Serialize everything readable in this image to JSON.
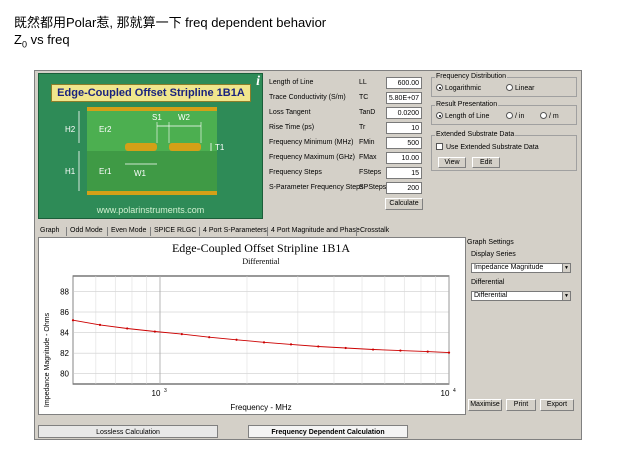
{
  "captions": {
    "line1": "既然都用Polar惹, 那就算一下 freq dependent behavior",
    "line2_pre": "Z",
    "line2_sub": "0",
    "line2_post": " vs freq"
  },
  "diagram": {
    "title": "Edge-Coupled Offset Stripline 1B1A",
    "info_icon": "i",
    "url": "www.polarinstruments.com",
    "labels": {
      "s1": "S1",
      "w2": "W2",
      "h2": "H2",
      "h1": "H1",
      "er2": "Er2",
      "er1": "Er1",
      "t1": "T1",
      "w1": "W1"
    }
  },
  "params": [
    {
      "label": "Length of Line",
      "symbol": "LL",
      "value": "600.00"
    },
    {
      "label": "Trace Conductivity (S/m)",
      "symbol": "TC",
      "value": "5.80E+07"
    },
    {
      "label": "Loss Tangent",
      "symbol": "TanD",
      "value": "0.0200"
    },
    {
      "label": "Rise Time (ps)",
      "symbol": "Tr",
      "value": "10"
    },
    {
      "label": "Frequency Minimum (MHz)",
      "symbol": "FMin",
      "value": "500"
    },
    {
      "label": "Frequency Maximum (GHz)",
      "symbol": "FMax",
      "value": "10.00"
    },
    {
      "label": "Frequency Steps",
      "symbol": "FSteps",
      "value": "15"
    },
    {
      "label": "S-Parameter Frequency Steps",
      "symbol": "SPSteps",
      "value": "200"
    }
  ],
  "calculate_label": "Calculate",
  "freq_dist": {
    "title": "Frequency Distribution",
    "opt1": "Logarithmic",
    "opt2": "Linear"
  },
  "result_pres": {
    "title": "Result Presentation",
    "opt1": "Length of Line",
    "opt2": "/ in",
    "opt3": "/ m"
  },
  "ext_substrate": {
    "title": "Extended Substrate Data",
    "check_label": "Use Extended Substrate Data",
    "view": "View",
    "edit": "Edit"
  },
  "tabs": [
    "Graph",
    "Odd Mode",
    "Even Mode",
    "SPICE RLGC",
    "4 Port S-Parameters",
    "4 Port Magnitude and Phase",
    "Crosstalk"
  ],
  "graph_settings": {
    "title": "Graph Settings",
    "display_series_label": "Display Series",
    "display_series_value": "Impedance Magnitude",
    "differential_label": "Differential",
    "differential_value": "Differential",
    "maximise": "Maximise",
    "print": "Print",
    "export": "Export"
  },
  "bottom_tabs": [
    "Lossless Calculation",
    "Frequency Dependent Calculation"
  ],
  "chart_data": {
    "type": "line",
    "title": "Edge-Coupled Offset Stripline 1B1A",
    "subtitle": "Differential",
    "xlabel": "Frequency - MHz",
    "ylabel": "Impedance Magnitude - Ohms",
    "xscale": "log",
    "xlim": [
      500,
      10000
    ],
    "ylim": [
      79,
      89.5
    ],
    "yticks": [
      80,
      82,
      84,
      86,
      88
    ],
    "xticks": [
      1000,
      10000
    ],
    "xtick_labels": [
      "10",
      "10"
    ],
    "xtick_exps": [
      "3",
      "4"
    ],
    "grid": true,
    "color": "#cc0000",
    "x": [
      500,
      620,
      770,
      960,
      1190,
      1480,
      1840,
      2290,
      2840,
      3530,
      4390,
      5460,
      6790,
      8440,
      10000
    ],
    "y": [
      85.2,
      84.75,
      84.4,
      84.1,
      83.85,
      83.55,
      83.3,
      83.05,
      82.85,
      82.65,
      82.5,
      82.35,
      82.25,
      82.15,
      82.05
    ]
  }
}
